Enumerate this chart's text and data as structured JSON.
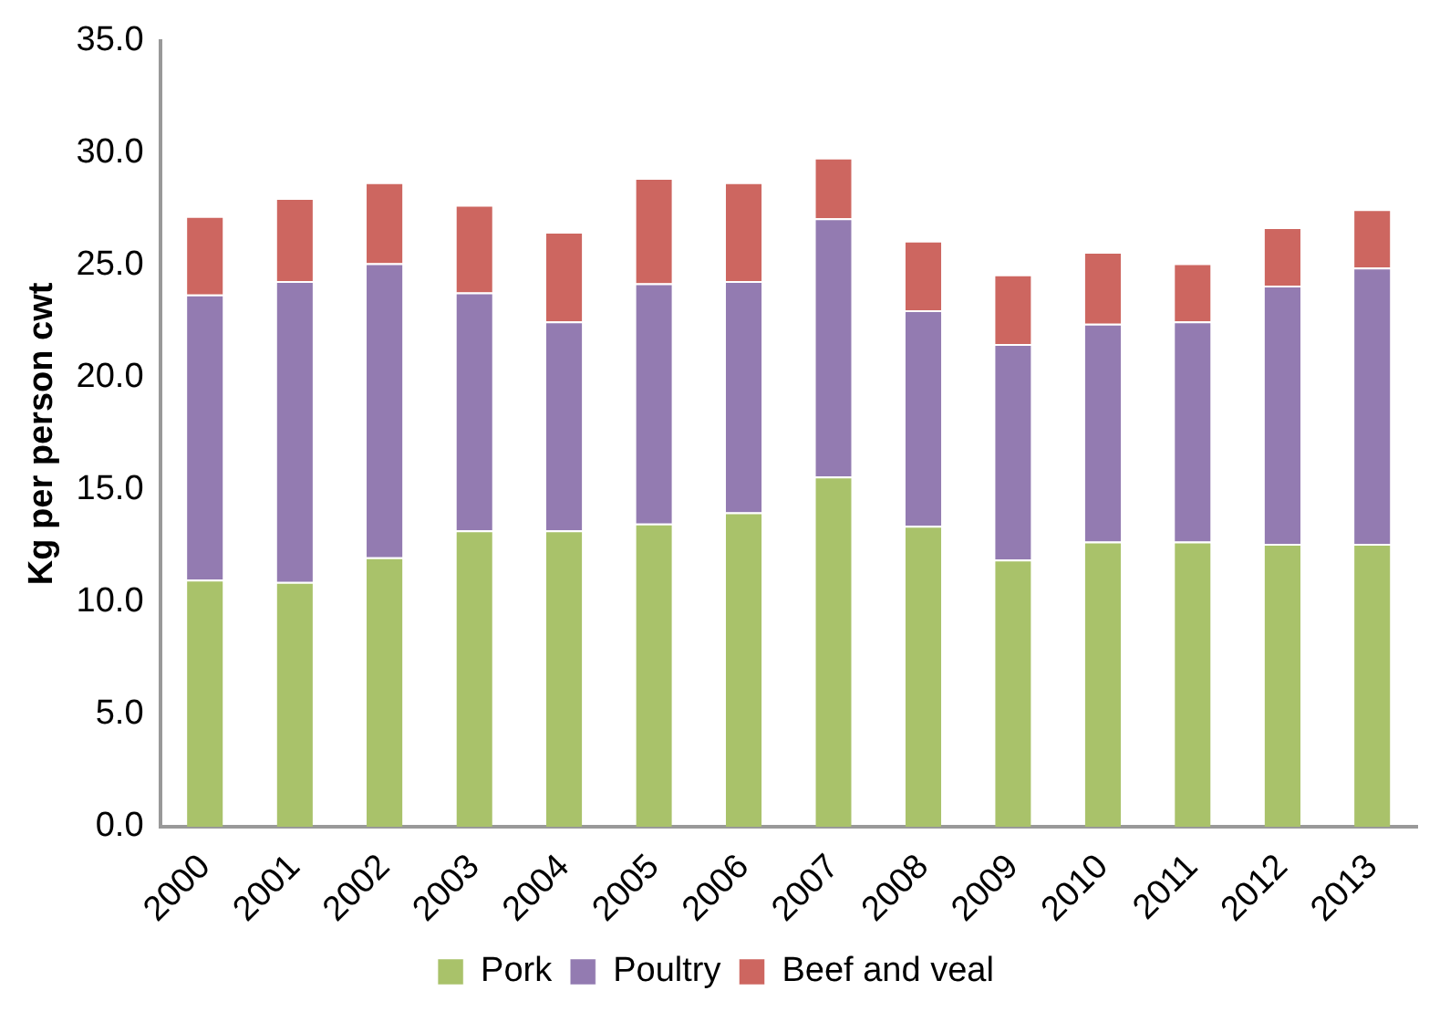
{
  "chart_data": {
    "type": "bar",
    "stacked": true,
    "ylabel": "Kg per person cwt",
    "categories": [
      "2000",
      "2001",
      "2002",
      "2003",
      "2004",
      "2005",
      "2006",
      "2007",
      "2008",
      "2009",
      "2010",
      "2011",
      "2012",
      "2013"
    ],
    "series": [
      {
        "name": "Pork",
        "color": "#a9c26a",
        "values": [
          11.0,
          10.9,
          12.0,
          13.2,
          13.2,
          13.5,
          14.0,
          15.6,
          13.4,
          11.9,
          12.7,
          12.7,
          12.6,
          12.6
        ]
      },
      {
        "name": "Poultry",
        "color": "#937bb1",
        "values": [
          12.7,
          13.4,
          13.1,
          10.6,
          9.3,
          10.7,
          10.3,
          11.5,
          9.6,
          9.6,
          9.7,
          9.8,
          11.5,
          12.3
        ]
      },
      {
        "name": "Beef and veal",
        "color": "#cd6660",
        "values": [
          3.5,
          3.7,
          3.6,
          3.9,
          4.0,
          4.7,
          4.4,
          2.7,
          3.1,
          3.1,
          3.2,
          2.6,
          2.6,
          2.6
        ]
      }
    ],
    "ylim": [
      0,
      35
    ],
    "yticks": [
      {
        "value": 0,
        "label": "0.0"
      },
      {
        "value": 5,
        "label": "5.0"
      },
      {
        "value": 10,
        "label": "10.0"
      },
      {
        "value": 15,
        "label": "15.0"
      },
      {
        "value": 20,
        "label": "20.0"
      },
      {
        "value": 25,
        "label": "25.0"
      },
      {
        "value": 30,
        "label": "30.0"
      },
      {
        "value": 35,
        "label": "35.0"
      }
    ],
    "grid": false,
    "legend": "bottom"
  }
}
